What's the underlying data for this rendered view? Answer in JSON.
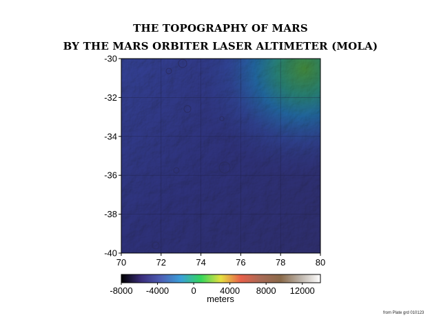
{
  "title_line1": "THE TOPOGRAPHY OF MARS",
  "title_line2": "BY THE MARS ORBITER LASER ALTIMETER (MOLA)",
  "map": {
    "type": "topographic-map",
    "x_ticks": [
      "70",
      "72",
      "74",
      "76",
      "78",
      "80"
    ],
    "y_ticks": [
      "-30",
      "-32",
      "-34",
      "-36",
      "-38",
      "-40"
    ],
    "xlim": [
      70,
      80
    ],
    "ylim": [
      -40,
      -30
    ],
    "grid": true
  },
  "colorbar": {
    "ticks": [
      "-8000",
      "-4000",
      "0",
      "4000",
      "8000",
      "12000"
    ],
    "range": [
      -8000,
      14000
    ],
    "label": "meters",
    "colors": [
      "#000000",
      "#3a2d7a",
      "#4d5fb5",
      "#3aa0d8",
      "#34d65c",
      "#e6e040",
      "#e8604a",
      "#a86a55",
      "#8a6a4a",
      "#bdb4aa",
      "#ffffff"
    ]
  },
  "credit": "from Plate grd 010123"
}
